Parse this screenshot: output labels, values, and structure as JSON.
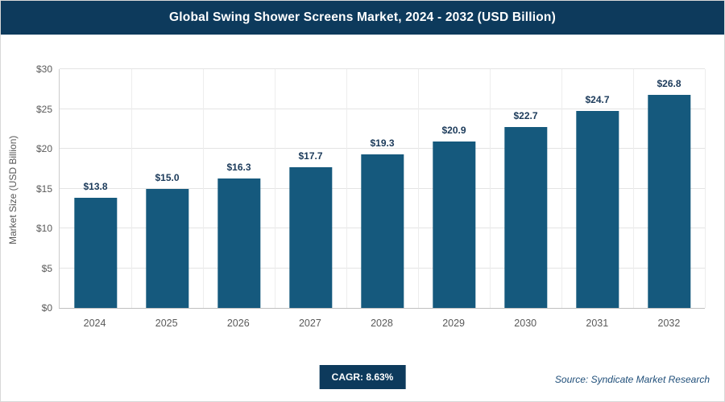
{
  "header": {
    "title": "Global Swing Shower Screens Market, 2024 - 2032 (USD Billion)"
  },
  "colors": {
    "accent_navy": "#0d3a5c",
    "bar_fill": "#15597d",
    "label_navy": "#1b3a5a"
  },
  "chart_data": {
    "type": "bar",
    "title": "Global Swing Shower Screens Market, 2024 - 2032 (USD Billion)",
    "categories": [
      "2024",
      "2025",
      "2026",
      "2027",
      "2028",
      "2029",
      "2030",
      "2031",
      "2032"
    ],
    "values": [
      13.8,
      15.0,
      16.3,
      17.7,
      19.3,
      20.9,
      22.7,
      24.7,
      26.8
    ],
    "value_labels": [
      "$13.8",
      "$15.0",
      "$16.3",
      "$17.7",
      "$19.3",
      "$20.9",
      "$22.7",
      "$24.7",
      "$26.8"
    ],
    "xlabel": "",
    "ylabel": "Market Size (USD Billion)",
    "ylim": [
      0,
      30
    ],
    "ytick_step": 5,
    "ytick_labels": [
      "$0",
      "$5",
      "$10",
      "$15",
      "$20",
      "$25",
      "$30"
    ],
    "grid": "horizontal and vertical light gray",
    "legend": "none"
  },
  "footer": {
    "cagr_label": "CAGR: 8.63%",
    "source": "Source: Syndicate Market Research"
  }
}
